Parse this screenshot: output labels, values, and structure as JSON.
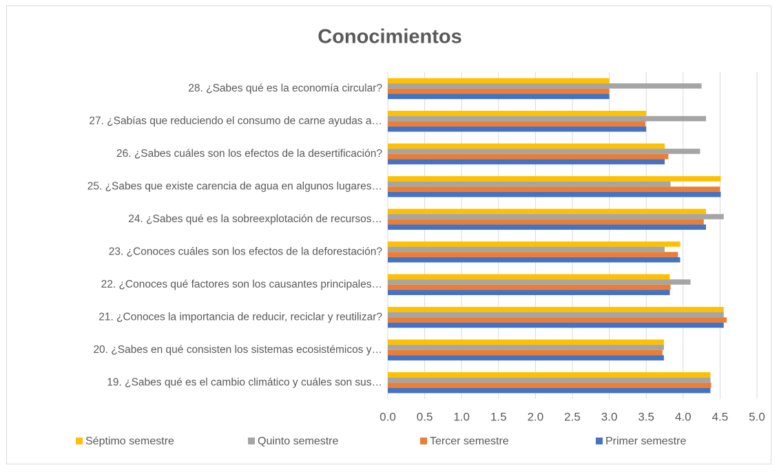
{
  "chart_data": {
    "type": "bar",
    "orientation": "horizontal",
    "title": "Conocimientos",
    "categories": [
      "19. ¿Sabes qué es el cambio climático y cuáles son sus…",
      "20. ¿Sabes en qué consisten los sistemas ecosistémicos y…",
      "21. ¿Conoces la importancia de reducir, reciclar y reutilizar?",
      "22. ¿Conoces qué factores son los causantes principales…",
      "23. ¿Conoces cuáles son los efectos de la deforestación?",
      "24. ¿Sabes qué es la sobreexplotación de recursos…",
      "25. ¿Sabes que existe carencia de agua en algunos lugares…",
      "26. ¿Sabes cuáles son los efectos de la desertificación?",
      "27. ¿Sabías que reduciendo el consumo de carne ayudas a…",
      "28. ¿Sabes qué es la economía circular?"
    ],
    "series": [
      {
        "name": "Séptimo semestre",
        "color": "#FFC000",
        "values": [
          4.37,
          3.74,
          4.55,
          3.82,
          3.96,
          4.31,
          4.51,
          3.75,
          3.5,
          3.0
        ]
      },
      {
        "name": "Quinto semestre",
        "color": "#A5A5A5",
        "values": [
          4.37,
          3.74,
          4.55,
          4.1,
          3.75,
          4.55,
          3.83,
          4.23,
          4.31,
          4.25
        ]
      },
      {
        "name": "Tercer semestre",
        "color": "#ED7D31",
        "values": [
          4.38,
          3.72,
          4.59,
          3.83,
          3.93,
          4.28,
          4.5,
          3.8,
          3.49,
          3.0
        ]
      },
      {
        "name": "Primer semestre",
        "color": "#4472C4",
        "values": [
          4.37,
          3.74,
          4.55,
          3.82,
          3.96,
          4.31,
          4.51,
          3.75,
          3.5,
          3.0
        ]
      }
    ],
    "xlim": [
      0,
      5
    ],
    "xticks": [
      {
        "value": 0,
        "label": "0.0"
      },
      0.5,
      {
        "value": 1,
        "label": "1.0"
      },
      1.5,
      {
        "value": 2,
        "label": "2.0"
      },
      2.5,
      {
        "value": 3,
        "label": "3.0"
      },
      3.5,
      {
        "value": 4,
        "label": "4.0"
      },
      4.5,
      {
        "value": 5,
        "label": "5.0"
      }
    ],
    "grid": true,
    "legend": "bottom"
  }
}
